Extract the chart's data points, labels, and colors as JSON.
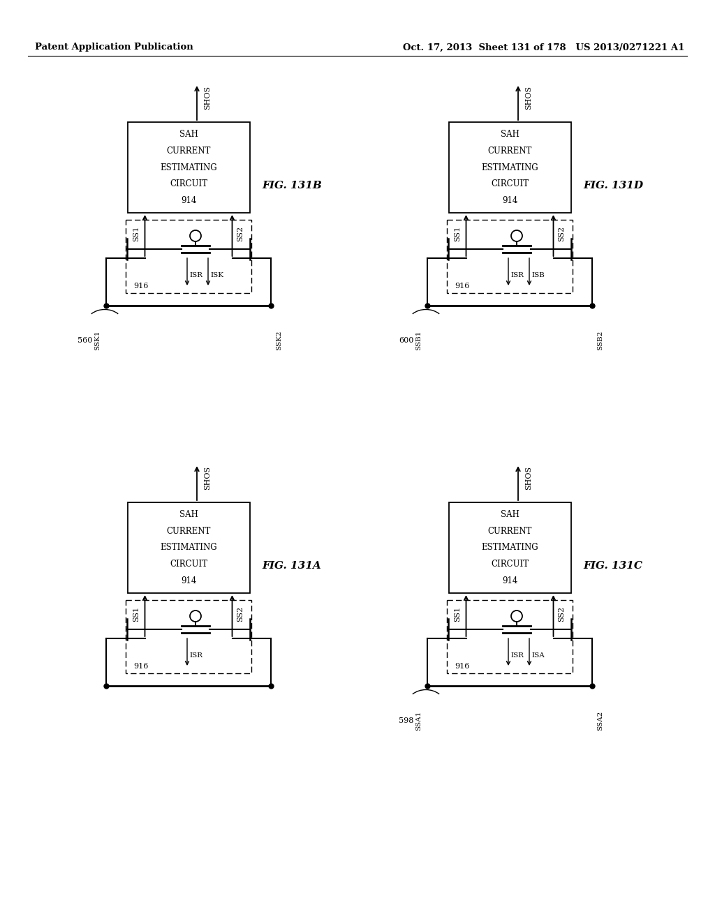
{
  "header_left": "Patent Application Publication",
  "header_right": "Oct. 17, 2013  Sheet 131 of 178   US 2013/0271221 A1",
  "bg": "#ffffff",
  "diagrams": [
    {
      "id": "131A",
      "label": "FIG. 131A",
      "col": 0,
      "row": 1,
      "left_wire_label": "",
      "right_wire_label": "",
      "bottom_num": "",
      "extra_arrow_label": "",
      "isr_label": "ISR"
    },
    {
      "id": "131B",
      "label": "FIG. 131B",
      "col": 0,
      "row": 0,
      "left_wire_label": "SSK1",
      "right_wire_label": "SSK2",
      "bottom_num": "560",
      "extra_arrow_label": "ISK",
      "isr_label": "ISR"
    },
    {
      "id": "131C",
      "label": "FIG. 131C",
      "col": 1,
      "row": 1,
      "left_wire_label": "SSA1",
      "right_wire_label": "SSA2",
      "bottom_num": "598",
      "extra_arrow_label": "ISA",
      "isr_label": "ISR"
    },
    {
      "id": "131D",
      "label": "FIG. 131D",
      "col": 1,
      "row": 0,
      "left_wire_label": "SSB1",
      "right_wire_label": "SSB2",
      "bottom_num": "600",
      "extra_arrow_label": "ISB",
      "isr_label": "ISR"
    }
  ]
}
